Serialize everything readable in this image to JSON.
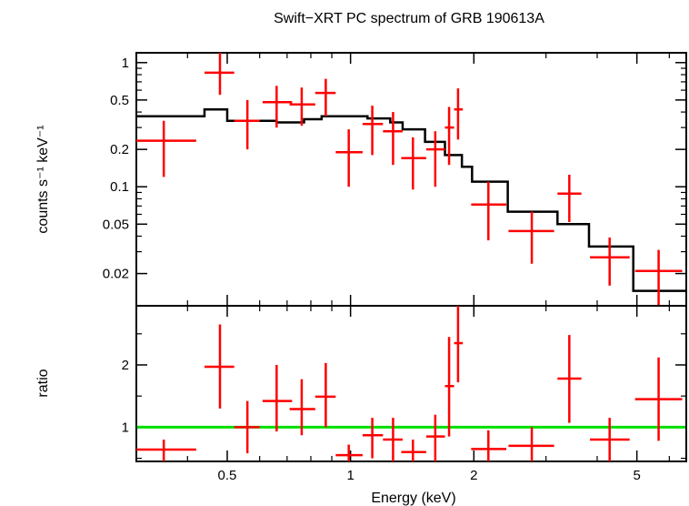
{
  "chart_data": [
    {
      "type": "scatter",
      "title": "Swift−XRT PC spectrum of GRB 190613A",
      "xlabel": "Energy (keV)",
      "ylabel": "counts s⁻¹ keV⁻¹",
      "x_scale": "log",
      "y_scale": "log",
      "xlim": [
        0.3,
        6.6
      ],
      "ylim": [
        0.011,
        1.2
      ],
      "y_ticks": [
        {
          "value": 1,
          "label": "1"
        },
        {
          "value": 0.5,
          "label": "0.5"
        },
        {
          "value": 0.2,
          "label": "0.2"
        },
        {
          "value": 0.1,
          "label": "0.1"
        },
        {
          "value": 0.05,
          "label": "0.05"
        },
        {
          "value": 0.02,
          "label": "0.02"
        }
      ],
      "series": [
        {
          "kind": "data",
          "color": "#ff0000",
          "points": [
            {
              "x": 0.35,
              "xlo": 0.3,
              "xhi": 0.42,
              "y": 0.235,
              "ylo": 0.12,
              "yhi": 0.34
            },
            {
              "x": 0.48,
              "xlo": 0.44,
              "xhi": 0.52,
              "y": 0.83,
              "ylo": 0.55,
              "yhi": 1.2
            },
            {
              "x": 0.56,
              "xlo": 0.52,
              "xhi": 0.6,
              "y": 0.34,
              "ylo": 0.2,
              "yhi": 0.5
            },
            {
              "x": 0.66,
              "xlo": 0.61,
              "xhi": 0.72,
              "y": 0.48,
              "ylo": 0.3,
              "yhi": 0.65
            },
            {
              "x": 0.76,
              "xlo": 0.71,
              "xhi": 0.82,
              "y": 0.46,
              "ylo": 0.31,
              "yhi": 0.63
            },
            {
              "x": 0.87,
              "xlo": 0.82,
              "xhi": 0.92,
              "y": 0.57,
              "ylo": 0.37,
              "yhi": 0.74
            },
            {
              "x": 0.99,
              "xlo": 0.92,
              "xhi": 1.07,
              "y": 0.19,
              "ylo": 0.1,
              "yhi": 0.29
            },
            {
              "x": 1.13,
              "xlo": 1.07,
              "xhi": 1.2,
              "y": 0.32,
              "ylo": 0.18,
              "yhi": 0.45
            },
            {
              "x": 1.27,
              "xlo": 1.2,
              "xhi": 1.34,
              "y": 0.28,
              "ylo": 0.15,
              "yhi": 0.4
            },
            {
              "x": 1.42,
              "xlo": 1.33,
              "xhi": 1.53,
              "y": 0.17,
              "ylo": 0.095,
              "yhi": 0.25
            },
            {
              "x": 1.61,
              "xlo": 1.53,
              "xhi": 1.7,
              "y": 0.2,
              "ylo": 0.1,
              "yhi": 0.28
            },
            {
              "x": 1.74,
              "xlo": 1.7,
              "xhi": 1.79,
              "y": 0.3,
              "ylo": 0.15,
              "yhi": 0.44
            },
            {
              "x": 1.83,
              "xlo": 1.79,
              "xhi": 1.88,
              "y": 0.42,
              "ylo": 0.24,
              "yhi": 0.62
            },
            {
              "x": 2.17,
              "xlo": 1.97,
              "xhi": 2.4,
              "y": 0.072,
              "ylo": 0.037,
              "yhi": 0.11
            },
            {
              "x": 2.77,
              "xlo": 2.43,
              "xhi": 3.14,
              "y": 0.044,
              "ylo": 0.024,
              "yhi": 0.063
            },
            {
              "x": 3.42,
              "xlo": 3.2,
              "xhi": 3.66,
              "y": 0.088,
              "ylo": 0.052,
              "yhi": 0.125
            },
            {
              "x": 4.29,
              "xlo": 3.84,
              "xhi": 4.8,
              "y": 0.027,
              "ylo": 0.016,
              "yhi": 0.039
            },
            {
              "x": 5.65,
              "xlo": 4.95,
              "xhi": 6.45,
              "y": 0.021,
              "ylo": 0.011,
              "yhi": 0.031
            }
          ]
        },
        {
          "kind": "model",
          "color": "#000000",
          "steps": [
            {
              "x0": 0.3,
              "x1": 0.44,
              "y": 0.37
            },
            {
              "x0": 0.44,
              "x1": 0.5,
              "y": 0.42
            },
            {
              "x0": 0.5,
              "x1": 0.66,
              "y": 0.34
            },
            {
              "x0": 0.66,
              "x1": 0.77,
              "y": 0.33
            },
            {
              "x0": 0.77,
              "x1": 0.85,
              "y": 0.35
            },
            {
              "x0": 0.85,
              "x1": 1.1,
              "y": 0.37
            },
            {
              "x0": 1.1,
              "x1": 1.25,
              "y": 0.355
            },
            {
              "x0": 1.25,
              "x1": 1.34,
              "y": 0.33
            },
            {
              "x0": 1.34,
              "x1": 1.52,
              "y": 0.29
            },
            {
              "x0": 1.52,
              "x1": 1.7,
              "y": 0.23
            },
            {
              "x0": 1.7,
              "x1": 1.87,
              "y": 0.18
            },
            {
              "x0": 1.87,
              "x1": 1.98,
              "y": 0.145
            },
            {
              "x0": 1.98,
              "x1": 2.42,
              "y": 0.11
            },
            {
              "x0": 2.42,
              "x1": 3.2,
              "y": 0.063
            },
            {
              "x0": 3.2,
              "x1": 3.82,
              "y": 0.05
            },
            {
              "x0": 3.82,
              "x1": 4.9,
              "y": 0.033
            },
            {
              "x0": 4.9,
              "x1": 6.6,
              "y": 0.0145
            }
          ]
        }
      ]
    },
    {
      "type": "scatter",
      "xlabel": "Energy (keV)",
      "ylabel": "ratio",
      "x_scale": "log",
      "y_scale": "linear",
      "xlim": [
        0.3,
        6.6
      ],
      "ylim": [
        0.45,
        2.95
      ],
      "x_ticks": [
        {
          "value": 0.5,
          "label": "0.5"
        },
        {
          "value": 1,
          "label": "1"
        },
        {
          "value": 2,
          "label": "2"
        },
        {
          "value": 5,
          "label": "5"
        }
      ],
      "y_ticks": [
        {
          "value": 1,
          "label": "1"
        },
        {
          "value": 2,
          "label": "2"
        }
      ],
      "reference_line": {
        "y": 1,
        "color": "#00e000"
      },
      "series": [
        {
          "kind": "ratio",
          "color": "#ff0000",
          "points": [
            {
              "x": 0.35,
              "xlo": 0.3,
              "xhi": 0.42,
              "y": 0.64,
              "ylo": 0.45,
              "yhi": 0.8
            },
            {
              "x": 0.48,
              "xlo": 0.44,
              "xhi": 0.52,
              "y": 1.97,
              "ylo": 1.3,
              "yhi": 2.65
            },
            {
              "x": 0.56,
              "xlo": 0.52,
              "xhi": 0.6,
              "y": 1.0,
              "ylo": 0.58,
              "yhi": 1.42
            },
            {
              "x": 0.66,
              "xlo": 0.61,
              "xhi": 0.72,
              "y": 1.42,
              "ylo": 0.93,
              "yhi": 2.0
            },
            {
              "x": 0.76,
              "xlo": 0.71,
              "xhi": 0.82,
              "y": 1.29,
              "ylo": 0.87,
              "yhi": 1.77
            },
            {
              "x": 0.87,
              "xlo": 0.82,
              "xhi": 0.92,
              "y": 1.49,
              "ylo": 1.0,
              "yhi": 2.03
            },
            {
              "x": 0.99,
              "xlo": 0.92,
              "xhi": 1.07,
              "y": 0.55,
              "ylo": 0.45,
              "yhi": 0.72
            },
            {
              "x": 1.13,
              "xlo": 1.07,
              "xhi": 1.2,
              "y": 0.87,
              "ylo": 0.5,
              "yhi": 1.15
            },
            {
              "x": 1.27,
              "xlo": 1.2,
              "xhi": 1.34,
              "y": 0.8,
              "ylo": 0.45,
              "yhi": 1.15
            },
            {
              "x": 1.42,
              "xlo": 1.33,
              "xhi": 1.53,
              "y": 0.6,
              "ylo": 0.45,
              "yhi": 0.8
            },
            {
              "x": 1.61,
              "xlo": 1.53,
              "xhi": 1.7,
              "y": 0.85,
              "ylo": 0.45,
              "yhi": 1.2
            },
            {
              "x": 1.74,
              "xlo": 1.7,
              "xhi": 1.79,
              "y": 1.66,
              "ylo": 0.85,
              "yhi": 2.45
            },
            {
              "x": 1.83,
              "xlo": 1.79,
              "xhi": 1.88,
              "y": 2.35,
              "ylo": 1.72,
              "yhi": 2.95
            },
            {
              "x": 2.17,
              "xlo": 1.97,
              "xhi": 2.4,
              "y": 0.65,
              "ylo": 0.45,
              "yhi": 0.95
            },
            {
              "x": 2.77,
              "xlo": 2.43,
              "xhi": 3.14,
              "y": 0.7,
              "ylo": 0.45,
              "yhi": 1.0
            },
            {
              "x": 3.42,
              "xlo": 3.2,
              "xhi": 3.66,
              "y": 1.78,
              "ylo": 1.07,
              "yhi": 2.48
            },
            {
              "x": 4.29,
              "xlo": 3.84,
              "xhi": 4.8,
              "y": 0.8,
              "ylo": 0.45,
              "yhi": 1.15
            },
            {
              "x": 5.65,
              "xlo": 4.95,
              "xhi": 6.45,
              "y": 1.45,
              "ylo": 0.78,
              "yhi": 2.12
            }
          ]
        }
      ]
    }
  ]
}
